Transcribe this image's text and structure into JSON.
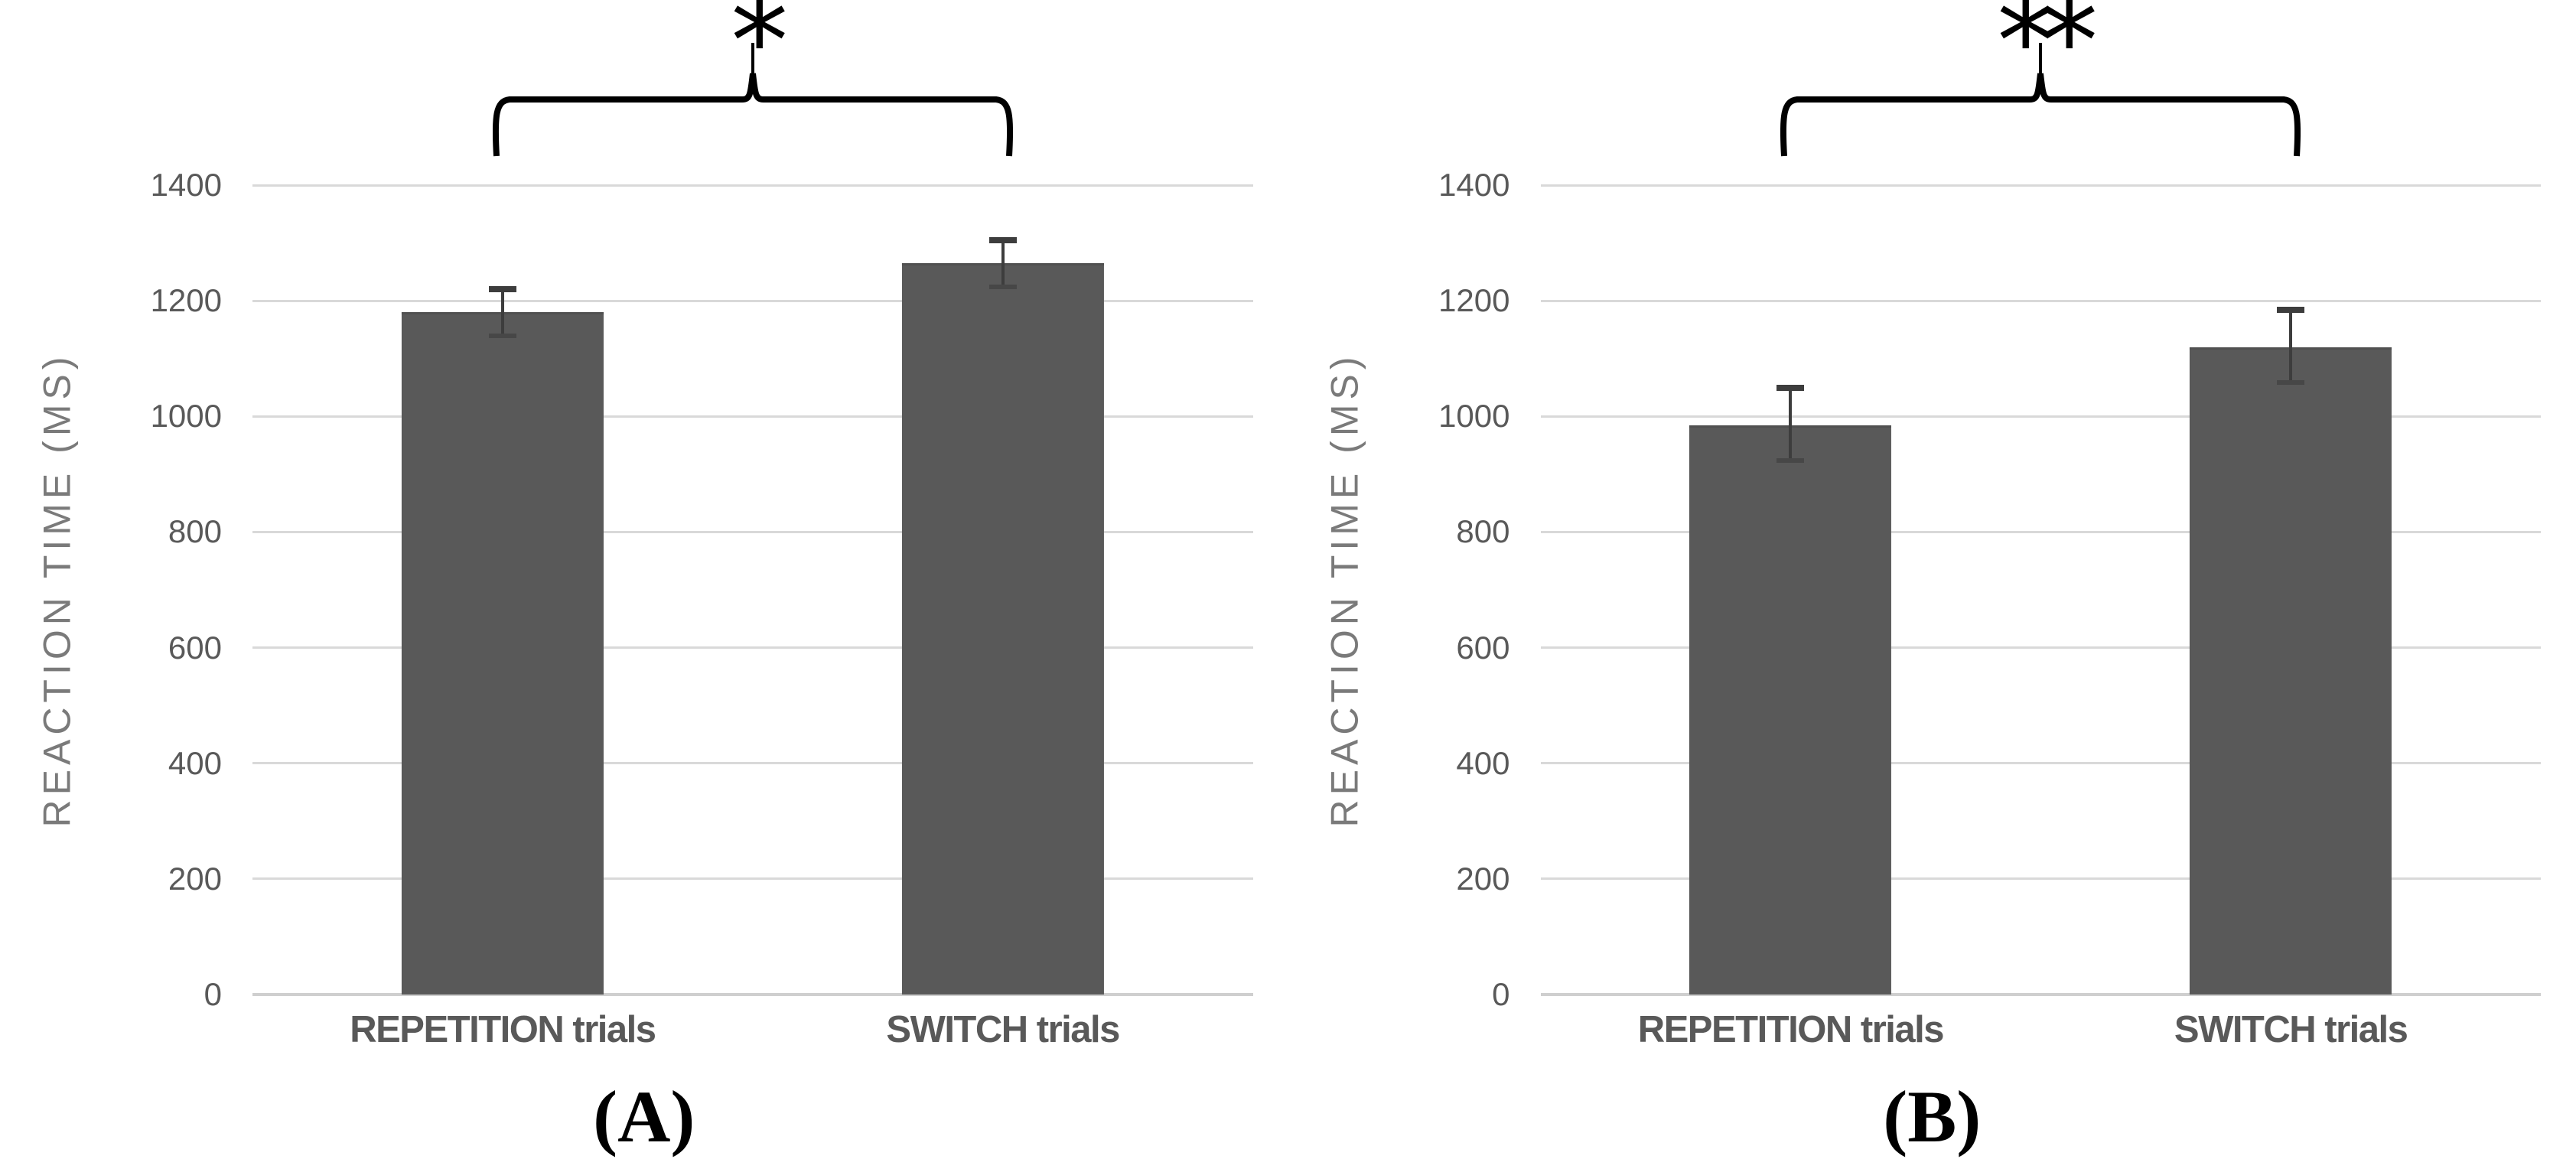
{
  "figure_title": "",
  "colors": {
    "bar": "#595959",
    "bar_top_edge": "#505050",
    "gridline": "#d9d9d9",
    "baseline": "#cfcfcf",
    "tick_text": "#595959",
    "category_text": "#595959",
    "axis_title_text": "#7a7a7a",
    "error_bar": "#3d3d3d",
    "annotation": "#000000",
    "background": "#ffffff"
  },
  "chart_data": [
    {
      "type": "bar",
      "panel_label": "(A)",
      "significance": "*",
      "title": "",
      "xlabel": "",
      "ylabel": "REACTION TIME (MS)",
      "categories": [
        "REPETITION trials",
        "SWITCH trials"
      ],
      "values": [
        1180,
        1265
      ],
      "error_bars": {
        "upper": [
          45,
          45
        ],
        "lower": [
          45,
          45
        ]
      },
      "ylim": [
        0,
        1400
      ],
      "yticks": [
        0,
        200,
        400,
        600,
        800,
        1000,
        1200,
        1400
      ],
      "grid": true,
      "legend": "none",
      "bar_color": "#595959"
    },
    {
      "type": "bar",
      "panel_label": "(B)",
      "significance": "**",
      "title": "",
      "xlabel": "",
      "ylabel": "REACTION TIME (MS)",
      "categories": [
        "REPETITION trials",
        "SWITCH trials"
      ],
      "values": [
        985,
        1120
      ],
      "error_bars": {
        "upper": [
          70,
          70
        ],
        "lower": [
          65,
          65
        ]
      },
      "ylim": [
        0,
        1400
      ],
      "yticks": [
        0,
        200,
        400,
        600,
        800,
        1000,
        1200,
        1400
      ],
      "grid": true,
      "legend": "none",
      "bar_color": "#595959"
    }
  ]
}
